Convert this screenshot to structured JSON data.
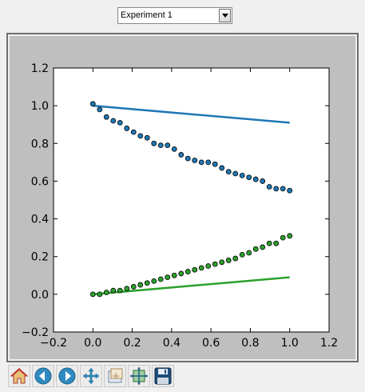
{
  "experiment_select": {
    "value": "Experiment 1"
  },
  "toolbar": {
    "icons": [
      "home-icon",
      "back-icon",
      "forward-icon",
      "pan-icon",
      "zoom-icon",
      "subplots-icon",
      "save-icon"
    ]
  },
  "chart_data": {
    "type": "line",
    "xlim": [
      -0.2,
      1.2
    ],
    "ylim": [
      -0.2,
      1.2
    ],
    "xticks": [
      "−0.2",
      "0.0",
      "0.2",
      "0.4",
      "0.6",
      "0.8",
      "1.0",
      "1.2"
    ],
    "yticks": [
      "−0.2",
      "0.0",
      "0.2",
      "0.4",
      "0.6",
      "0.8",
      "1.0",
      "1.2"
    ],
    "grid": false,
    "lines": [
      {
        "color": "#1f77b4",
        "x": [
          0.0,
          1.0
        ],
        "y": [
          1.0,
          0.91
        ]
      },
      {
        "color": "#2ca02c",
        "x": [
          0.0,
          1.0
        ],
        "y": [
          0.0,
          0.09
        ]
      }
    ],
    "scatter": [
      {
        "color": "#1f77b4",
        "x": [
          0.0,
          0.0345,
          0.069,
          0.1034,
          0.1379,
          0.1724,
          0.2069,
          0.2414,
          0.2759,
          0.3103,
          0.3448,
          0.3793,
          0.4138,
          0.4483,
          0.4828,
          0.5172,
          0.5517,
          0.5862,
          0.6207,
          0.6552,
          0.6897,
          0.7241,
          0.7586,
          0.7931,
          0.8276,
          0.8621,
          0.8966,
          0.931,
          0.9655,
          1.0
        ],
        "y": [
          1.01,
          0.98,
          0.94,
          0.92,
          0.91,
          0.88,
          0.86,
          0.84,
          0.83,
          0.8,
          0.79,
          0.79,
          0.77,
          0.74,
          0.72,
          0.71,
          0.7,
          0.7,
          0.69,
          0.67,
          0.65,
          0.64,
          0.63,
          0.62,
          0.61,
          0.6,
          0.57,
          0.56,
          0.56,
          0.55
        ]
      },
      {
        "color": "#2ca02c",
        "x": [
          0.0,
          0.0345,
          0.069,
          0.1034,
          0.1379,
          0.1724,
          0.2069,
          0.2414,
          0.2759,
          0.3103,
          0.3448,
          0.3793,
          0.4138,
          0.4483,
          0.4828,
          0.5172,
          0.5517,
          0.5862,
          0.6207,
          0.6552,
          0.6897,
          0.7241,
          0.7586,
          0.7931,
          0.8276,
          0.8621,
          0.8966,
          0.931,
          0.9655,
          1.0
        ],
        "y": [
          0.0,
          0.0,
          0.01,
          0.02,
          0.02,
          0.03,
          0.04,
          0.05,
          0.06,
          0.07,
          0.08,
          0.09,
          0.1,
          0.11,
          0.12,
          0.13,
          0.14,
          0.15,
          0.16,
          0.17,
          0.18,
          0.19,
          0.21,
          0.22,
          0.24,
          0.25,
          0.27,
          0.27,
          0.3,
          0.31
        ]
      }
    ]
  }
}
